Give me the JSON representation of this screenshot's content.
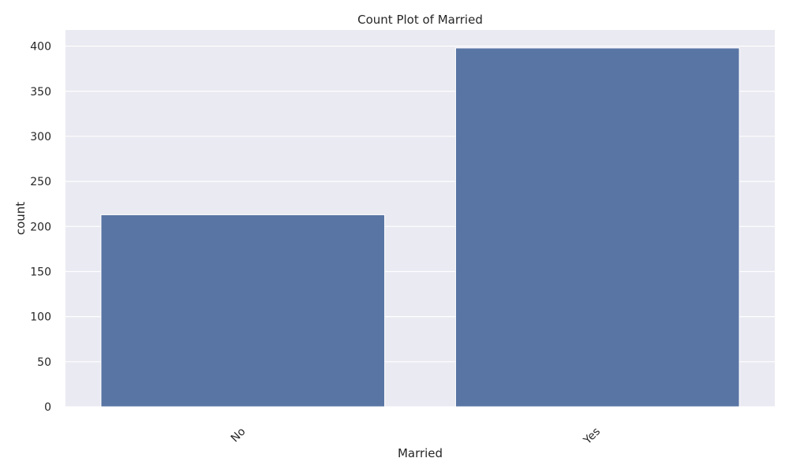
{
  "chart_data": {
    "type": "bar",
    "title": "Count Plot of Married",
    "xlabel": "Married",
    "ylabel": "count",
    "categories": [
      "No",
      "Yes"
    ],
    "values": [
      213,
      398
    ],
    "ylim": [
      0,
      418
    ],
    "yticks": [
      0,
      50,
      100,
      150,
      200,
      250,
      300,
      350,
      400
    ],
    "grid": true,
    "legend": "none",
    "colors": {
      "bar": "#5975a4",
      "plot_background": "#eaeaf2",
      "grid": "#ffffff",
      "text": "#262626"
    }
  }
}
